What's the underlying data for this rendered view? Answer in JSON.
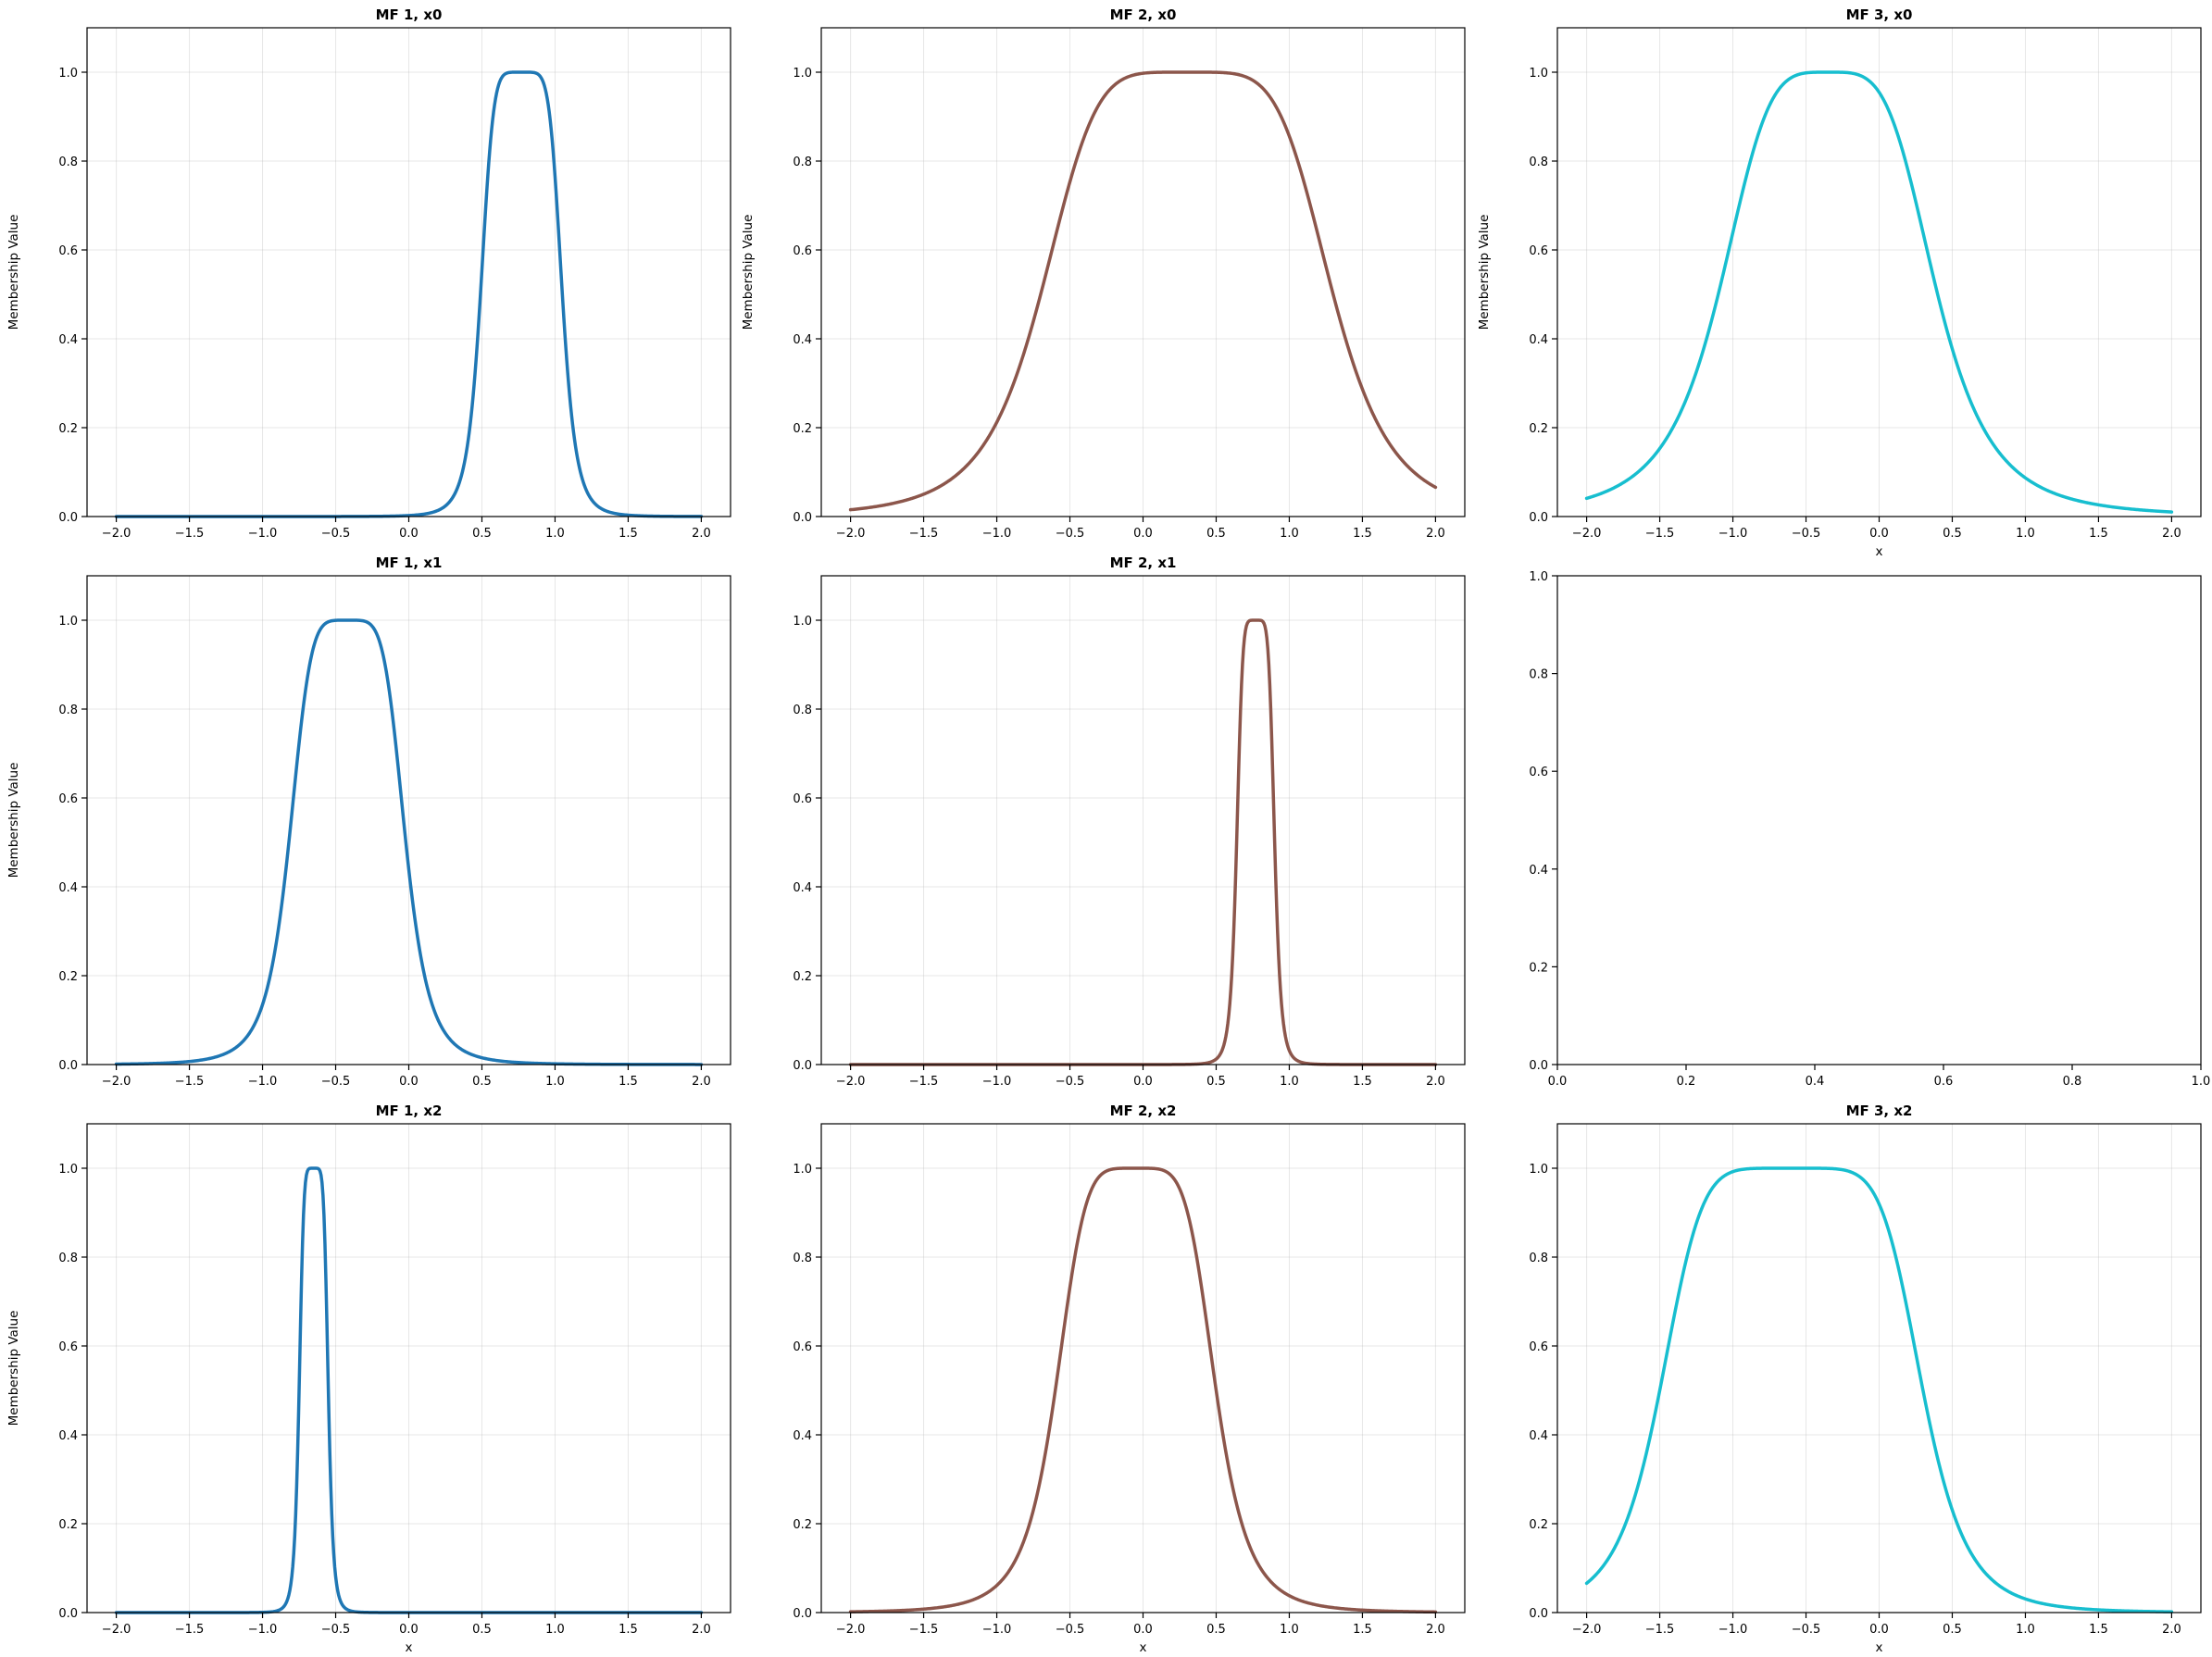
{
  "figure": {
    "background": "#ffffff"
  },
  "chart_data": [
    {
      "type": "line",
      "title": "MF 1, x0",
      "xlabel": "",
      "ylabel": "Membership Value",
      "color": "#1f77b4",
      "xlim": [
        -2.2,
        2.2
      ],
      "ylim": [
        0,
        1.1
      ],
      "grid": true,
      "xticks": [
        "−2.0",
        "−1.5",
        "−1.0",
        "−0.5",
        "0.0",
        "0.5",
        "1.0",
        "1.5",
        "2.0"
      ],
      "yticks": [
        "0.0",
        "0.2",
        "0.4",
        "0.6",
        "0.8",
        "1.0"
      ],
      "series": [
        {
          "mf": {
            "c": 0.77,
            "a": 0.28,
            "b": 3.0
          },
          "x_range": [
            -2,
            2
          ]
        }
      ]
    },
    {
      "type": "line",
      "title": "MF 2, x0",
      "xlabel": "",
      "ylabel": "Membership Value",
      "color": "#8c564b",
      "xlim": [
        -2.2,
        2.2
      ],
      "ylim": [
        0,
        1.1
      ],
      "grid": true,
      "xticks": [
        "−2.0",
        "−1.5",
        "−1.0",
        "−0.5",
        "0.0",
        "0.5",
        "1.0",
        "1.5",
        "2.0"
      ],
      "yticks": [
        "0.0",
        "0.2",
        "0.4",
        "0.6",
        "0.8",
        "1.0"
      ],
      "series": [
        {
          "mf": {
            "c": 0.3,
            "a": 1.0,
            "b": 2.5
          },
          "x_range": [
            -2,
            2
          ]
        }
      ]
    },
    {
      "type": "line",
      "title": "MF 3, x0",
      "xlabel": "x",
      "ylabel": "Membership Value",
      "color": "#17becf",
      "xlim": [
        -2.2,
        2.2
      ],
      "ylim": [
        0,
        1.1
      ],
      "grid": true,
      "xticks": [
        "−2.0",
        "−1.5",
        "−1.0",
        "−0.5",
        "0.0",
        "0.5",
        "1.0",
        "1.5",
        "2.0"
      ],
      "yticks": [
        "0.0",
        "0.2",
        "0.4",
        "0.6",
        "0.8",
        "1.0"
      ],
      "series": [
        {
          "mf": {
            "c": -0.35,
            "a": 0.75,
            "b": 2.0
          },
          "x_range": [
            -2,
            2
          ]
        }
      ]
    },
    {
      "type": "line",
      "title": "MF 1, x1",
      "xlabel": "",
      "ylabel": "Membership Value",
      "color": "#1f77b4",
      "xlim": [
        -2.2,
        2.2
      ],
      "ylim": [
        0,
        1.1
      ],
      "grid": true,
      "xticks": [
        "−2.0",
        "−1.5",
        "−1.0",
        "−0.5",
        "0.0",
        "0.5",
        "1.0",
        "1.5",
        "2.0"
      ],
      "yticks": [
        "0.0",
        "0.2",
        "0.4",
        "0.6",
        "0.8",
        "1.0"
      ],
      "series": [
        {
          "mf": {
            "c": -0.42,
            "a": 0.4,
            "b": 2.5
          },
          "x_range": [
            -2,
            2
          ]
        }
      ]
    },
    {
      "type": "line",
      "title": "MF 2, x1",
      "xlabel": "",
      "ylabel": "",
      "color": "#8c564b",
      "xlim": [
        -2.2,
        2.2
      ],
      "ylim": [
        0,
        1.1
      ],
      "grid": true,
      "xticks": [
        "−2.0",
        "−1.5",
        "−1.0",
        "−0.5",
        "0.0",
        "0.5",
        "1.0",
        "1.5",
        "2.0"
      ],
      "yticks": [
        "0.0",
        "0.2",
        "0.4",
        "0.6",
        "0.8",
        "1.0"
      ],
      "series": [
        {
          "mf": {
            "c": 0.77,
            "a": 0.13,
            "b": 3.0
          },
          "x_range": [
            -2,
            2
          ]
        }
      ]
    },
    {
      "type": "line",
      "title": "",
      "xlabel": "",
      "ylabel": "",
      "color": "#000000",
      "xlim": [
        0,
        1
      ],
      "ylim": [
        0,
        1
      ],
      "grid": false,
      "xticks": [
        "0.0",
        "0.2",
        "0.4",
        "0.6",
        "0.8",
        "1.0"
      ],
      "yticks": [
        "0.0",
        "0.2",
        "0.4",
        "0.6",
        "0.8",
        "1.0"
      ],
      "series": []
    },
    {
      "type": "line",
      "title": "MF 1, x2",
      "xlabel": "x",
      "ylabel": "Membership Value",
      "color": "#1f77b4",
      "xlim": [
        -2.2,
        2.2
      ],
      "ylim": [
        0,
        1.1
      ],
      "grid": true,
      "xticks": [
        "−2.0",
        "−1.5",
        "−1.0",
        "−0.5",
        "0.0",
        "0.5",
        "1.0",
        "1.5",
        "2.0"
      ],
      "yticks": [
        "0.0",
        "0.2",
        "0.4",
        "0.6",
        "0.8",
        "1.0"
      ],
      "series": [
        {
          "mf": {
            "c": -0.65,
            "a": 0.1,
            "b": 3.0
          },
          "x_range": [
            -2,
            2
          ]
        }
      ]
    },
    {
      "type": "line",
      "title": "MF 2, x2",
      "xlabel": "x",
      "ylabel": "",
      "color": "#8c564b",
      "xlim": [
        -2.2,
        2.2
      ],
      "ylim": [
        0,
        1.1
      ],
      "grid": true,
      "xticks": [
        "−2.0",
        "−1.5",
        "−1.0",
        "−0.5",
        "0.0",
        "0.5",
        "1.0",
        "1.5",
        "2.0"
      ],
      "yticks": [
        "0.0",
        "0.2",
        "0.4",
        "0.6",
        "0.8",
        "1.0"
      ],
      "series": [
        {
          "mf": {
            "c": -0.05,
            "a": 0.55,
            "b": 2.5
          },
          "x_range": [
            -2,
            2
          ]
        }
      ]
    },
    {
      "type": "line",
      "title": "MF 3, x2",
      "xlabel": "x",
      "ylabel": "",
      "color": "#17becf",
      "xlim": [
        -2.2,
        2.2
      ],
      "ylim": [
        0,
        1.1
      ],
      "grid": true,
      "xticks": [
        "−2.0",
        "−1.5",
        "−1.0",
        "−0.5",
        "0.0",
        "0.5",
        "1.0",
        "1.5",
        "2.0"
      ],
      "yticks": [
        "0.0",
        "0.2",
        "0.4",
        "0.6",
        "0.8",
        "1.0"
      ],
      "series": [
        {
          "mf": {
            "c": -0.6,
            "a": 0.9,
            "b": 3.0
          },
          "x_range": [
            -2,
            2
          ]
        }
      ]
    }
  ]
}
